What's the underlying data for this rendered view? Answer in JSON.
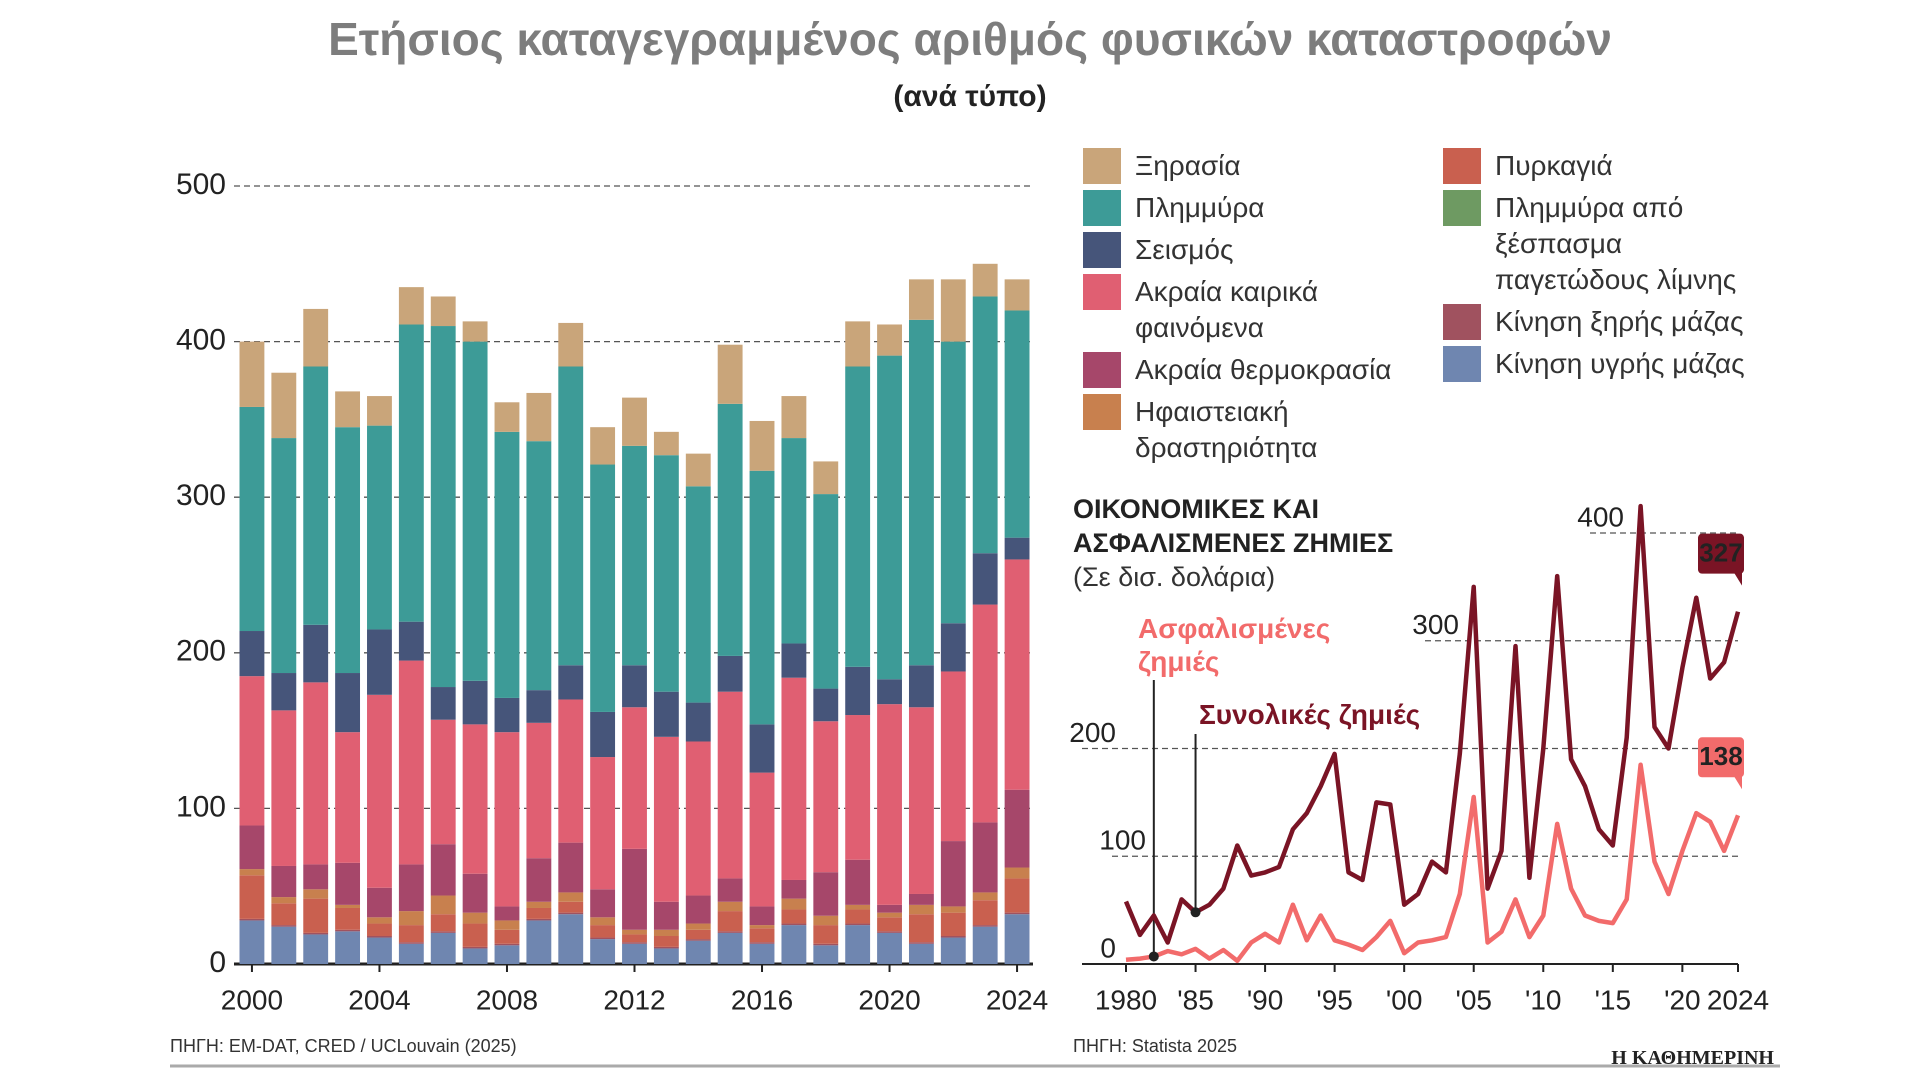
{
  "title": "Ετήσιος καταγεγραμμένος αριθμός φυσικών καταστροφών",
  "subtitle": "(ανά τύπο)",
  "brand": "Η ΚΑΘΗΜΕΡΙΝΗ",
  "chart_data": [
    {
      "type": "stacked_bar",
      "source": "ΠΗΓΗ: EM-DAT, CRED / UCLouvain (2025)",
      "x": [
        2000,
        2001,
        2002,
        2003,
        2004,
        2005,
        2006,
        2007,
        2008,
        2009,
        2010,
        2011,
        2012,
        2013,
        2014,
        2015,
        2016,
        2017,
        2018,
        2019,
        2020,
        2021,
        2022,
        2023,
        2024
      ],
      "xlim": [
        1999.5,
        2024.5
      ],
      "xticks": [
        2000,
        2004,
        2008,
        2012,
        2016,
        2020,
        2024
      ],
      "ylim": [
        0,
        500
      ],
      "yticks": [
        0,
        100,
        200,
        300,
        400,
        500
      ],
      "grid": true,
      "series": [
        {
          "name": "Ξηρασία",
          "color": "#c9a57a",
          "values": [
            42,
            42,
            37,
            23,
            19,
            24,
            19,
            13,
            19,
            31,
            28,
            24,
            31,
            15,
            21,
            38,
            32,
            27,
            21,
            29,
            20,
            26,
            40,
            21,
            20
          ]
        },
        {
          "name": "Πλημμύρα",
          "color": "#3d9b97",
          "values": [
            144,
            151,
            166,
            158,
            131,
            191,
            232,
            218,
            171,
            160,
            192,
            159,
            141,
            152,
            139,
            162,
            163,
            132,
            125,
            193,
            208,
            222,
            181,
            165,
            146
          ]
        },
        {
          "name": "Σεισμός",
          "color": "#46557a",
          "values": [
            29,
            24,
            37,
            38,
            42,
            25,
            21,
            28,
            22,
            21,
            22,
            29,
            27,
            29,
            25,
            23,
            31,
            22,
            21,
            31,
            16,
            27,
            31,
            33,
            14
          ]
        },
        {
          "name": "Ακραία καιρικά φαινόμενα",
          "color": "#e05f72",
          "values": [
            96,
            100,
            117,
            84,
            124,
            131,
            80,
            96,
            112,
            87,
            92,
            85,
            91,
            106,
            99,
            120,
            86,
            130,
            97,
            93,
            129,
            120,
            109,
            140,
            148
          ]
        },
        {
          "name": "Ακραία θερμοκρασία",
          "color": "#a6476a",
          "values": [
            28,
            20,
            16,
            27,
            19,
            30,
            33,
            25,
            9,
            28,
            32,
            18,
            52,
            18,
            18,
            15,
            12,
            12,
            28,
            29,
            5,
            7,
            42,
            45,
            50
          ]
        },
        {
          "name": "Ηφαιστειακή δραστηριότητα",
          "color": "#c8804e",
          "values": [
            4,
            4,
            6,
            2,
            4,
            9,
            12,
            7,
            6,
            4,
            6,
            5,
            3,
            4,
            4,
            6,
            2,
            7,
            6,
            3,
            3,
            6,
            4,
            5,
            7
          ]
        },
        {
          "name": "Πυρκαγιά",
          "color": "#c9604f",
          "values": [
            28,
            14,
            22,
            14,
            8,
            11,
            11,
            15,
            9,
            7,
            7,
            8,
            5,
            7,
            6,
            13,
            9,
            9,
            12,
            9,
            9,
            18,
            15,
            16,
            22
          ]
        },
        {
          "name": "Πλημμύρα από ξέσπασμα παγετώδους λίμνης",
          "color": "#6e9a62",
          "values": [
            0,
            0,
            0,
            0,
            0,
            0,
            0,
            0,
            0,
            0,
            0,
            0,
            0,
            0,
            0,
            0,
            0,
            0,
            0,
            0,
            0,
            0,
            0,
            0,
            0
          ]
        },
        {
          "name": "Κίνηση ξηρής μάζας",
          "color": "#a0525f",
          "values": [
            1,
            1,
            1,
            1,
            1,
            1,
            1,
            1,
            1,
            1,
            1,
            1,
            1,
            1,
            1,
            1,
            1,
            1,
            1,
            1,
            1,
            1,
            1,
            1,
            1
          ]
        },
        {
          "name": "Κίνηση υγρής μάζας",
          "color": "#6f86b0",
          "values": [
            28,
            24,
            19,
            21,
            17,
            13,
            20,
            10,
            12,
            28,
            32,
            16,
            13,
            10,
            15,
            20,
            13,
            25,
            12,
            25,
            20,
            13,
            17,
            24,
            32
          ]
        }
      ]
    },
    {
      "type": "line",
      "title": "ΟΙΚΟΝΟΜΙΚΕΣ ΚΑΙ ΑΣΦΑΛΙΣΜΕΝΕΣ ΖΗΜΙΕΣ",
      "subtitle": "(Σε δισ. δολάρια)",
      "source": "ΠΗΓΗ: Statista 2025",
      "x": [
        1980,
        1981,
        1982,
        1983,
        1984,
        1985,
        1986,
        1987,
        1988,
        1989,
        1990,
        1991,
        1992,
        1993,
        1994,
        1995,
        1996,
        1997,
        1998,
        1999,
        2000,
        2001,
        2002,
        2003,
        2004,
        2005,
        2006,
        2007,
        2008,
        2009,
        2010,
        2011,
        2012,
        2013,
        2014,
        2015,
        2016,
        2017,
        2018,
        2019,
        2020,
        2021,
        2022,
        2023,
        2024
      ],
      "xlim": [
        1980,
        2024
      ],
      "xticks": [
        1980,
        {
          "value": 1985,
          "label": "'85"
        },
        {
          "value": 1990,
          "label": "'90"
        },
        {
          "value": 1995,
          "label": "'95"
        },
        {
          "value": 2000,
          "label": "'00"
        },
        {
          "value": 2005,
          "label": "'05"
        },
        {
          "value": 2010,
          "label": "'10"
        },
        {
          "value": 2015,
          "label": "'15"
        },
        {
          "value": 2020,
          "label": "'20"
        },
        2024
      ],
      "ylim": [
        0,
        440
      ],
      "yticks": [
        0,
        100,
        200,
        300,
        400
      ],
      "grid": true,
      "series": [
        {
          "name": "Ασφαλισμένες ζημιές",
          "color": "#f26b6b",
          "values": [
            4,
            5,
            7,
            12,
            9,
            14,
            5,
            13,
            3,
            20,
            28,
            20,
            55,
            22,
            45,
            22,
            18,
            13,
            25,
            40,
            10,
            20,
            22,
            25,
            65,
            155,
            20,
            30,
            60,
            25,
            45,
            130,
            70,
            45,
            40,
            38,
            60,
            185,
            95,
            65,
            105,
            140,
            132,
            105,
            138
          ]
        },
        {
          "name": "Συνολικές ζημιές",
          "color": "#7a1425",
          "values": [
            58,
            27,
            45,
            20,
            60,
            48,
            55,
            70,
            110,
            82,
            85,
            90,
            125,
            140,
            165,
            195,
            85,
            78,
            150,
            148,
            55,
            65,
            95,
            85,
            195,
            350,
            70,
            105,
            295,
            80,
            200,
            360,
            190,
            165,
            125,
            110,
            210,
            425,
            220,
            200,
            275,
            340,
            265,
            280,
            327
          ]
        }
      ]
    }
  ]
}
